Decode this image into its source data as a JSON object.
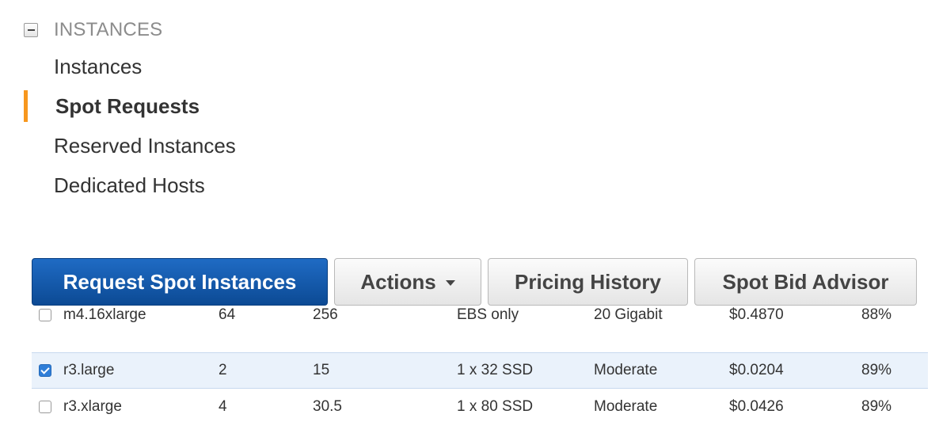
{
  "sidebar": {
    "section_title": "INSTANCES",
    "items": [
      {
        "label": "Instances",
        "active": false
      },
      {
        "label": "Spot Requests",
        "active": true
      },
      {
        "label": "Reserved Instances",
        "active": false
      },
      {
        "label": "Dedicated Hosts",
        "active": false
      }
    ]
  },
  "toolbar": {
    "request_label": "Request Spot Instances",
    "actions_label": "Actions",
    "pricing_history_label": "Pricing History",
    "bid_advisor_label": "Spot Bid Advisor"
  },
  "table": {
    "rows": [
      {
        "type": "m4.16xlarge",
        "vcpu": "64",
        "memory": "256",
        "storage": "EBS only",
        "network": "20 Gigabit",
        "price": "$0.4870",
        "savings": "88%",
        "checked": false
      },
      {
        "type": "r3.large",
        "vcpu": "2",
        "memory": "15",
        "storage": "1 x 32 SSD",
        "network": "Moderate",
        "price": "$0.0204",
        "savings": "89%",
        "checked": true
      },
      {
        "type": "r3.xlarge",
        "vcpu": "4",
        "memory": "30.5",
        "storage": "1 x 80 SSD",
        "network": "Moderate",
        "price": "$0.0426",
        "savings": "89%",
        "checked": false
      }
    ]
  },
  "colors": {
    "primary_button": "#1a5fb4",
    "active_indicator": "#f7971e",
    "selected_row": "#eaf2fb"
  }
}
